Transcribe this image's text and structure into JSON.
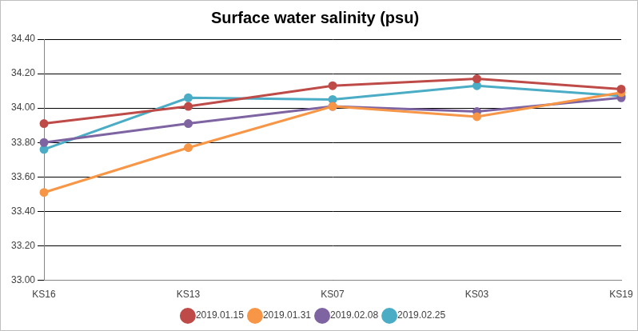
{
  "chart_data": {
    "type": "line",
    "title": "Surface water salinity (psu)",
    "categories": [
      "KS16",
      "KS13",
      "KS07",
      "KS03",
      "KS19"
    ],
    "series": [
      {
        "name": "2019.01.15",
        "color": "#be4b48",
        "values": [
          33.91,
          34.01,
          34.13,
          34.17,
          34.11
        ]
      },
      {
        "name": "2019.01.31",
        "color": "#f79646",
        "values": [
          33.51,
          33.77,
          34.01,
          33.95,
          34.09
        ]
      },
      {
        "name": "2019.02.08",
        "color": "#7f64a2",
        "values": [
          33.8,
          33.91,
          34.01,
          33.98,
          34.06
        ]
      },
      {
        "name": "2019.02.25",
        "color": "#4bacc6",
        "values": [
          33.76,
          34.06,
          34.05,
          34.13,
          34.07
        ]
      }
    ],
    "ylim": [
      33.0,
      34.4
    ],
    "yticks": [
      {
        "value": 33.0,
        "label": "33.00"
      },
      {
        "value": 33.2,
        "label": "33.20"
      },
      {
        "value": 33.4,
        "label": "33.40"
      },
      {
        "value": 33.6,
        "label": "33.60"
      },
      {
        "value": 33.8,
        "label": "33.80"
      },
      {
        "value": 34.0,
        "label": "34.00"
      },
      {
        "value": 34.2,
        "label": "34.20"
      },
      {
        "value": 34.4,
        "label": "34.40"
      }
    ],
    "grid": true,
    "legend": "bottom",
    "marker": "circle"
  }
}
